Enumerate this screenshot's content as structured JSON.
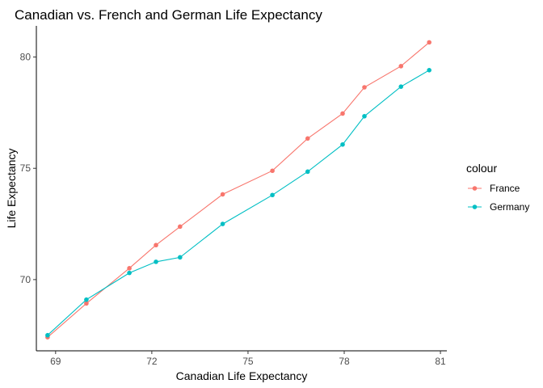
{
  "chart_data": {
    "type": "line",
    "title": "Canadian vs. French and German Life Expectancy",
    "xlabel": "Canadian Life Expectancy",
    "ylabel": "Life Expectancy",
    "xlim": [
      68.4,
      81.2
    ],
    "ylim": [
      66.8,
      81.4
    ],
    "x_ticks": [
      69,
      72,
      75,
      78,
      81
    ],
    "y_ticks": [
      70,
      75,
      80
    ],
    "grid": false,
    "legend": {
      "title": "colour",
      "position": "right"
    },
    "x": [
      68.75,
      69.96,
      71.3,
      72.13,
      72.88,
      74.21,
      75.76,
      76.86,
      77.95,
      78.63,
      79.77,
      80.65
    ],
    "series": [
      {
        "name": "France",
        "color": "#F8766D",
        "values": [
          67.41,
          68.93,
          70.51,
          71.55,
          72.38,
          73.83,
          74.89,
          76.34,
          77.46,
          78.64,
          79.59,
          80.66
        ]
      },
      {
        "name": "Germany",
        "color": "#00BFC4",
        "values": [
          67.5,
          69.1,
          70.3,
          70.8,
          71.0,
          72.5,
          73.8,
          74.85,
          76.07,
          77.34,
          78.67,
          79.41
        ]
      }
    ]
  }
}
